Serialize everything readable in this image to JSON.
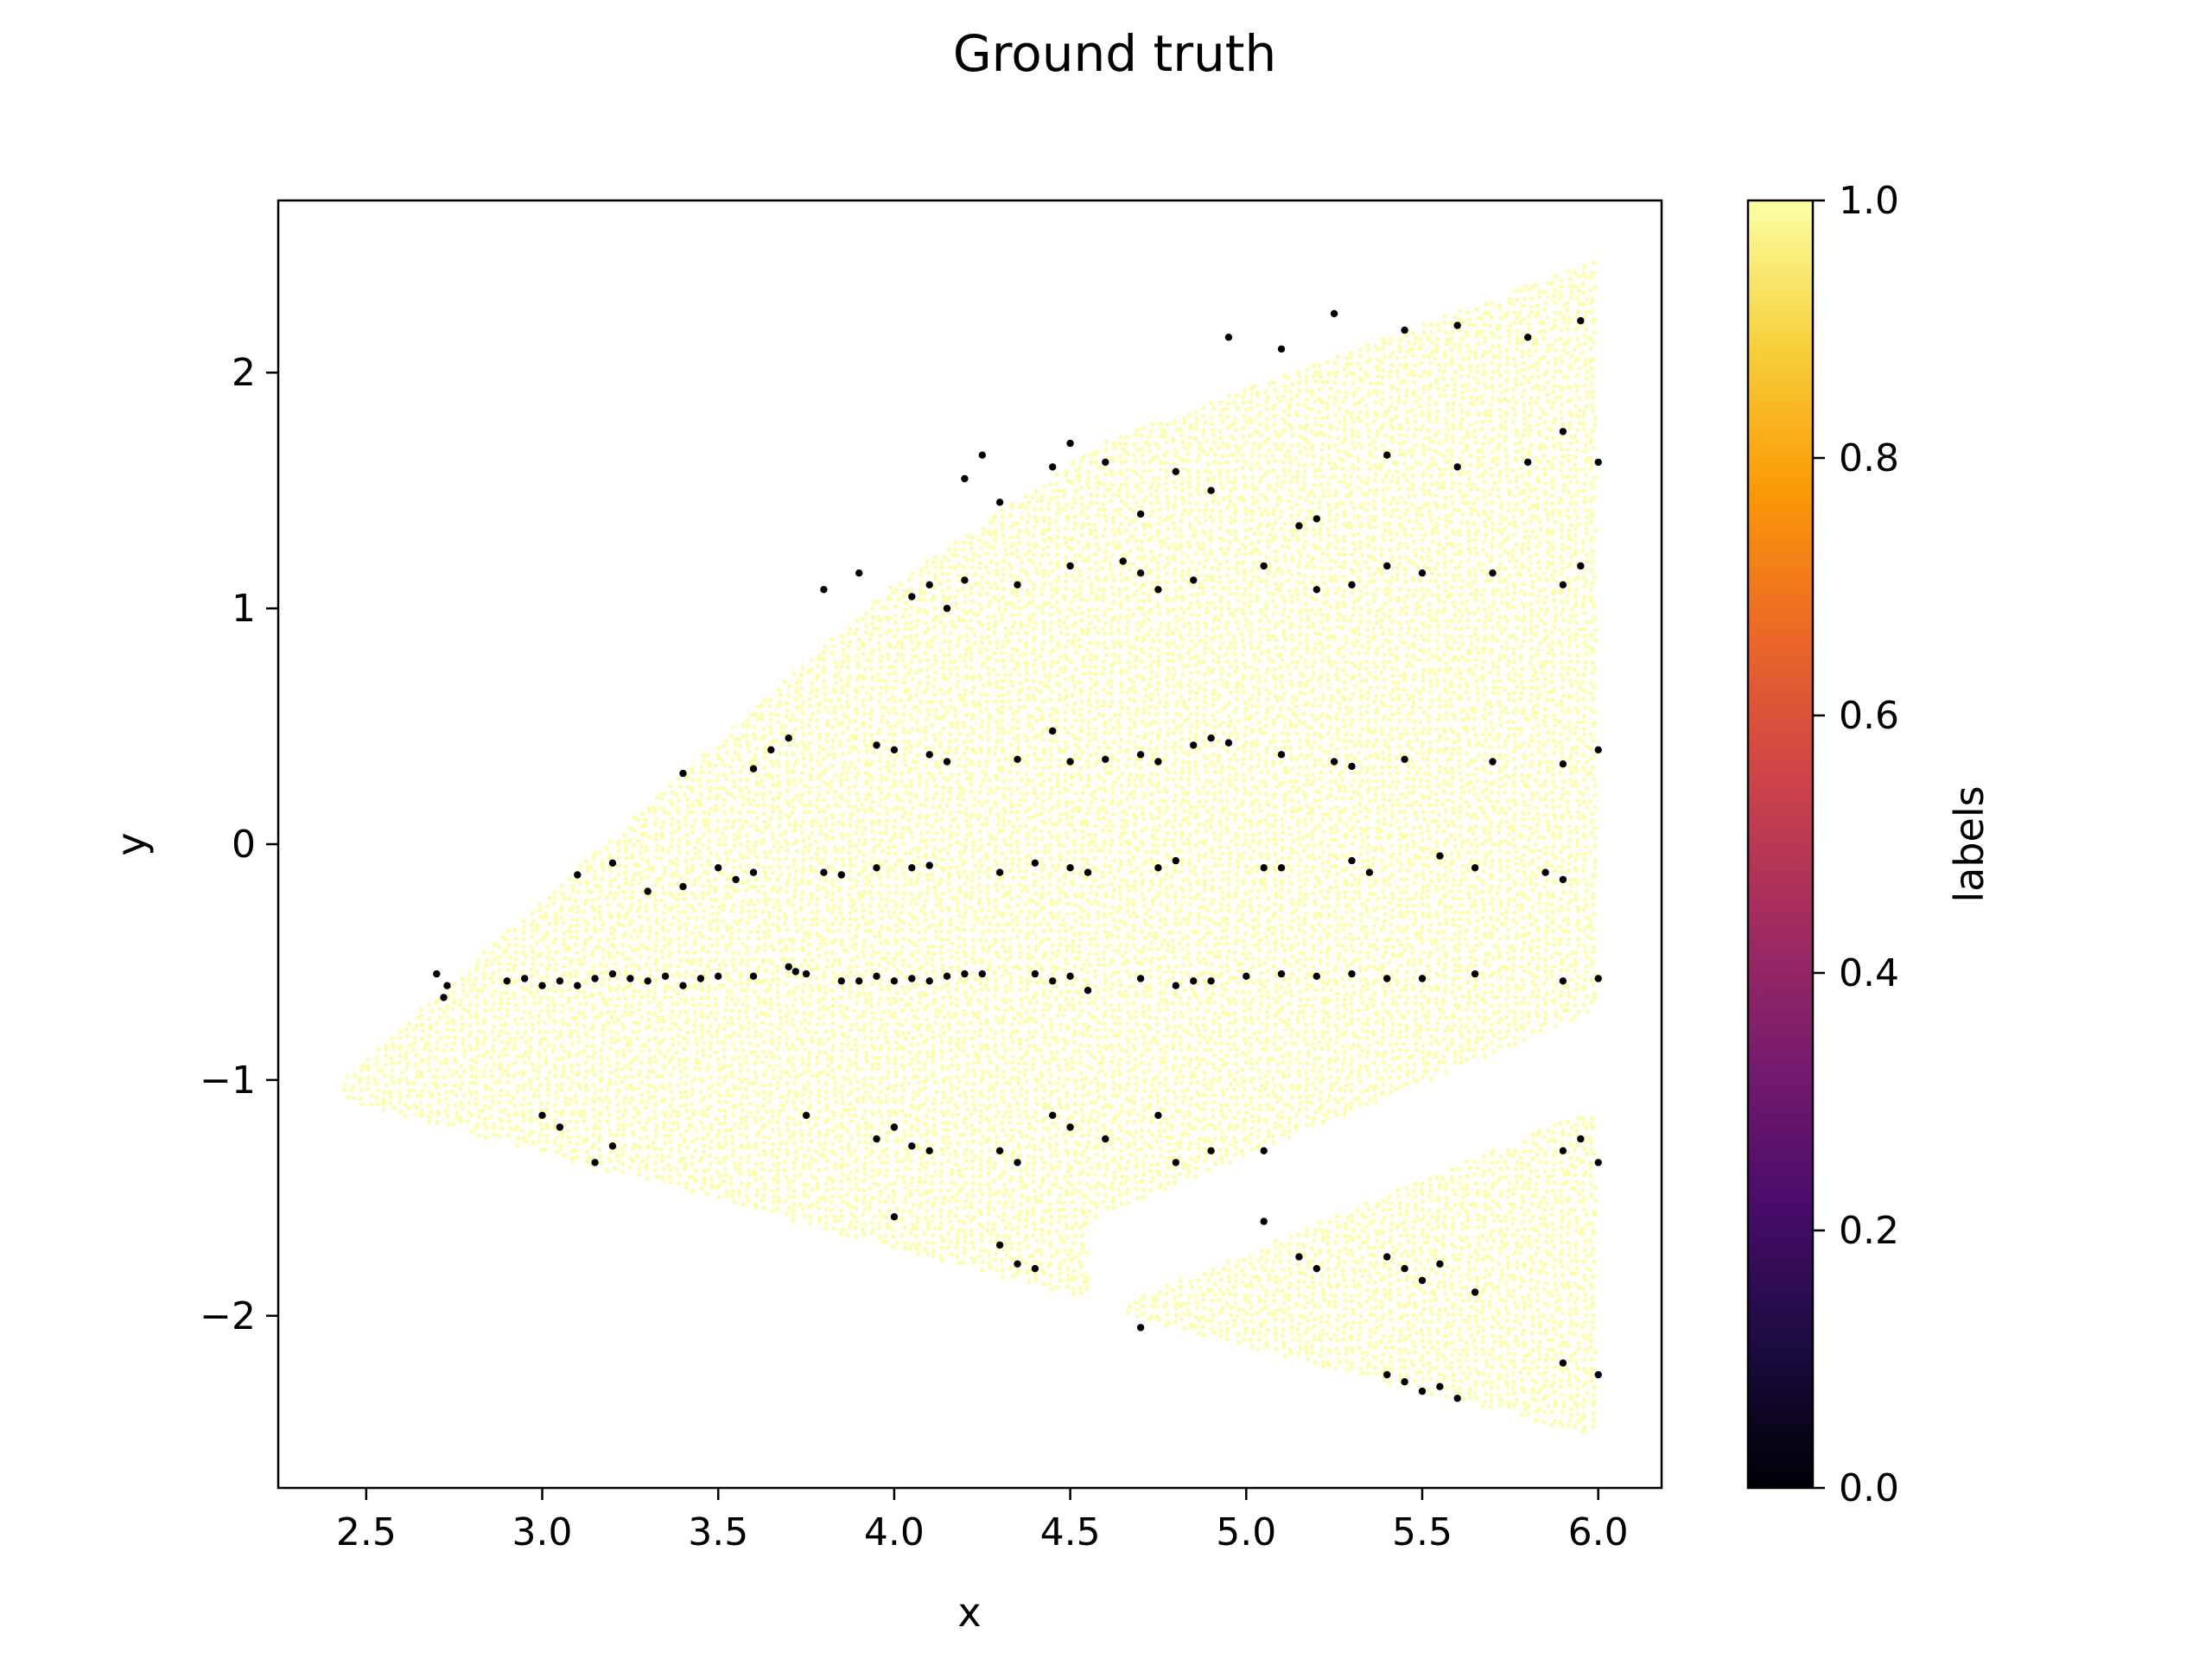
{
  "chart_data": {
    "type": "scatter",
    "title": "Ground truth",
    "xlabel": "x",
    "ylabel": "y",
    "xlim": [
      2.25,
      6.18
    ],
    "ylim": [
      -2.73,
      2.73
    ],
    "xticks": [
      "2.5",
      "3.0",
      "3.5",
      "4.0",
      "4.5",
      "5.0",
      "5.5",
      "6.0"
    ],
    "yticks": [
      "−2",
      "−1",
      "0",
      "1",
      "2"
    ],
    "grid": false,
    "legend": "none",
    "colormap": "inferno",
    "colorbar": {
      "label": "labels",
      "range": [
        0.0,
        1.0
      ],
      "ticks": [
        "0.0",
        "0.2",
        "0.4",
        "0.6",
        "0.8",
        "1.0"
      ],
      "stops": [
        "#000004",
        "#1b0c41",
        "#4a0c6b",
        "#781c6d",
        "#a52c60",
        "#cf4446",
        "#ed6925",
        "#fb9b06",
        "#f7d13d",
        "#fcffa4"
      ]
    },
    "point_colors": {
      "label_0": "#000004",
      "label_1": "#fcffa4"
    },
    "series": [
      {
        "label_value": 0,
        "x": [
          2.7,
          2.72,
          2.73,
          2.9,
          2.95,
          3.0,
          3.05,
          3.1,
          3.15,
          3.2,
          3.25,
          3.3,
          3.35,
          3.4,
          3.45,
          3.5,
          3.6,
          3.7,
          3.72,
          3.75,
          3.85,
          3.9,
          3.95,
          4.0,
          4.05,
          4.1,
          4.15,
          4.2,
          4.25,
          4.4,
          4.45,
          4.5,
          4.55,
          4.7,
          4.8,
          4.85,
          4.9,
          5.0,
          5.1,
          5.2,
          5.3,
          5.4,
          5.5,
          5.65,
          5.9,
          6.0,
          3.1,
          3.2,
          3.3,
          3.4,
          3.5,
          3.55,
          3.6,
          3.8,
          3.85,
          3.95,
          4.05,
          4.1,
          4.3,
          4.4,
          4.5,
          4.55,
          4.75,
          4.8,
          5.05,
          5.1,
          5.3,
          5.35,
          5.55,
          5.65,
          5.85,
          5.9,
          3.4,
          3.6,
          3.65,
          3.7,
          3.95,
          4.0,
          4.1,
          4.15,
          4.35,
          4.45,
          4.5,
          4.6,
          4.7,
          4.75,
          4.85,
          4.9,
          4.95,
          5.1,
          5.25,
          5.3,
          5.45,
          5.7,
          5.9,
          6.0,
          3.8,
          3.9,
          4.05,
          4.1,
          4.15,
          4.2,
          4.35,
          4.5,
          4.65,
          4.7,
          4.75,
          4.85,
          5.05,
          5.2,
          5.3,
          5.4,
          5.5,
          5.7,
          5.9,
          5.95,
          4.2,
          4.25,
          4.3,
          4.45,
          4.5,
          4.6,
          4.7,
          4.8,
          4.9,
          5.15,
          5.2,
          5.4,
          5.6,
          5.8,
          5.9,
          6.0,
          4.95,
          5.1,
          5.25,
          5.45,
          5.6,
          5.8,
          5.95,
          3.0,
          3.05,
          3.15,
          3.2,
          3.75,
          3.95,
          4.0,
          4.05,
          4.1,
          4.3,
          4.35,
          4.45,
          4.5,
          4.6,
          4.75,
          4.8,
          4.9,
          5.05,
          5.9,
          5.95,
          6.0,
          4.0,
          4.3,
          4.35,
          4.4,
          5.05,
          5.15,
          5.2,
          5.4,
          5.45,
          5.5,
          5.55,
          5.65,
          4.7,
          5.4,
          5.45,
          5.5,
          5.55,
          5.6,
          5.9,
          6.0
        ],
        "y": [
          -0.55,
          -0.65,
          -0.6,
          -0.58,
          -0.57,
          -0.6,
          -0.58,
          -0.6,
          -0.57,
          -0.55,
          -0.57,
          -0.58,
          -0.56,
          -0.6,
          -0.57,
          -0.56,
          -0.56,
          -0.52,
          -0.54,
          -0.55,
          -0.58,
          -0.58,
          -0.56,
          -0.58,
          -0.57,
          -0.58,
          -0.56,
          -0.55,
          -0.55,
          -0.55,
          -0.58,
          -0.56,
          -0.62,
          -0.57,
          -0.6,
          -0.58,
          -0.58,
          -0.56,
          -0.55,
          -0.56,
          -0.55,
          -0.57,
          -0.57,
          -0.55,
          -0.58,
          -0.57,
          -0.13,
          -0.08,
          -0.2,
          -0.18,
          -0.1,
          -0.15,
          -0.12,
          -0.12,
          -0.13,
          -0.1,
          -0.1,
          -0.09,
          -0.12,
          -0.08,
          -0.1,
          -0.12,
          -0.1,
          -0.07,
          -0.1,
          -0.1,
          -0.07,
          -0.12,
          -0.05,
          -0.1,
          -0.12,
          -0.15,
          0.3,
          0.32,
          0.4,
          0.45,
          0.42,
          0.4,
          0.38,
          0.35,
          0.36,
          0.48,
          0.35,
          0.36,
          0.38,
          0.35,
          0.42,
          0.45,
          0.43,
          0.38,
          0.35,
          0.33,
          0.36,
          0.35,
          0.34,
          0.4,
          1.08,
          1.15,
          1.05,
          1.1,
          1.0,
          1.12,
          1.1,
          1.18,
          1.2,
          1.15,
          1.08,
          1.12,
          1.18,
          1.08,
          1.1,
          1.18,
          1.15,
          1.15,
          1.1,
          1.18,
          1.55,
          1.65,
          1.45,
          1.6,
          1.7,
          1.62,
          1.4,
          1.58,
          1.5,
          1.35,
          1.38,
          1.65,
          1.6,
          1.62,
          1.75,
          1.62,
          2.15,
          2.1,
          2.25,
          2.18,
          2.2,
          2.15,
          2.22,
          -1.15,
          -1.2,
          -1.35,
          -1.28,
          -1.15,
          -1.25,
          -1.2,
          -1.28,
          -1.3,
          -1.3,
          -1.35,
          -1.15,
          -1.2,
          -1.25,
          -1.15,
          -1.35,
          -1.3,
          -1.3,
          -1.3,
          -1.25,
          -1.35,
          -1.58,
          -1.7,
          -1.78,
          -1.8,
          -1.6,
          -1.75,
          -1.8,
          -1.75,
          -1.8,
          -1.85,
          -1.78,
          -1.9,
          -2.05,
          -2.25,
          -2.28,
          -2.32,
          -2.3,
          -2.35,
          -2.2,
          -2.25
        ]
      },
      {
        "label_value": 1,
        "note_region": "dense field of label 1 points covering the plotted domain"
      }
    ]
  }
}
